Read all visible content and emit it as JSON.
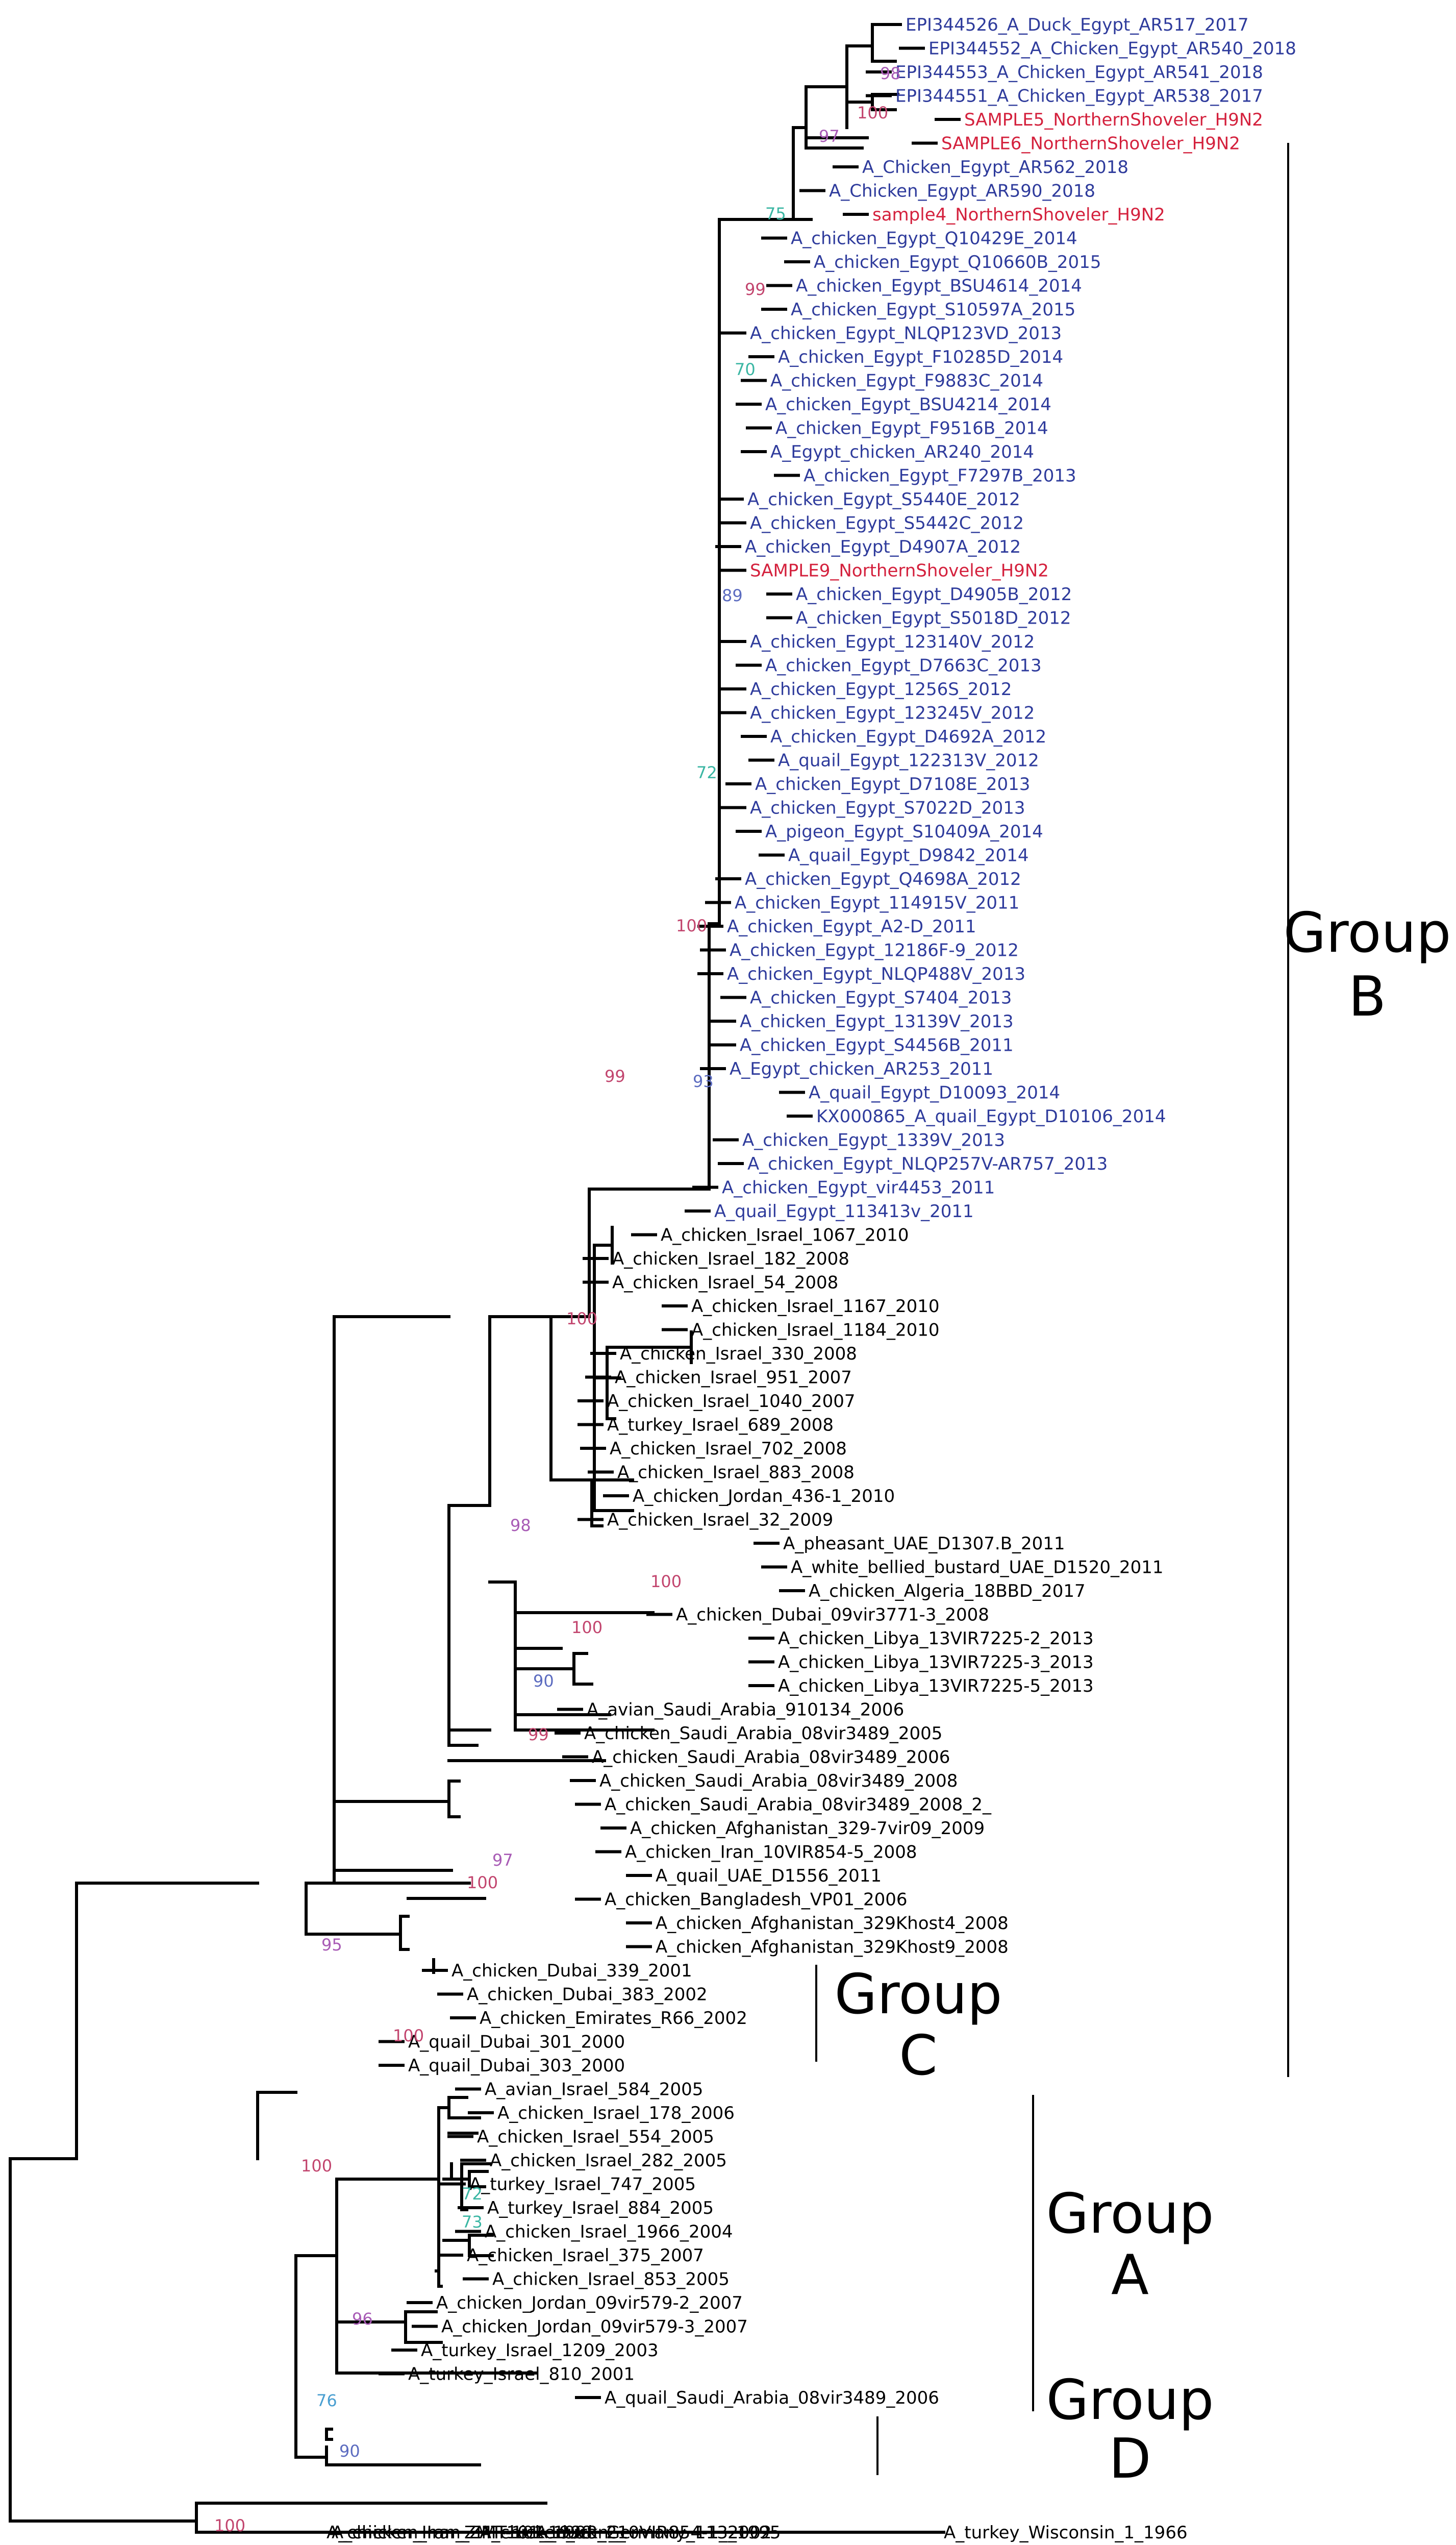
{
  "figure_type": "phylogenetic tree",
  "colors": {
    "branch": "#000000",
    "egypt_reference": "#2e3b9c",
    "study_sample": "#d4213d",
    "other_taxa": "#000000",
    "bootstrap_100_99": "#c2456e",
    "bootstrap_95_98": "#a85bb5",
    "bootstrap_89_93": "#5c6cc0",
    "bootstrap_70_75": "#3ab6a3",
    "bootstrap_76": "#4a9fd1"
  },
  "groups": [
    {
      "id": "B",
      "line1": "Group",
      "line2": "B"
    },
    {
      "id": "C",
      "line1": "Group",
      "line2": "C"
    },
    {
      "id": "A",
      "line1": "Group",
      "line2": "A"
    },
    {
      "id": "D",
      "line1": "Group",
      "line2": "D"
    }
  ],
  "taxa": [
    {
      "label": "EPI344526_A_Duck_Egypt_AR517_2017",
      "category": "egypt_reference"
    },
    {
      "label": "EPI344552_A_Chicken_Egypt_AR540_2018",
      "category": "egypt_reference"
    },
    {
      "label": "EPI344553_A_Chicken_Egypt_AR541_2018",
      "category": "egypt_reference"
    },
    {
      "label": "EPI344551_A_Chicken_Egypt_AR538_2017",
      "category": "egypt_reference"
    },
    {
      "label": "SAMPLE5_NorthernShoveler_H9N2",
      "category": "study_sample"
    },
    {
      "label": "SAMPLE6_NorthernShoveler_H9N2",
      "category": "study_sample"
    },
    {
      "label": "A_Chicken_Egypt_AR562_2018",
      "category": "egypt_reference"
    },
    {
      "label": "A_Chicken_Egypt_AR590_2018",
      "category": "egypt_reference"
    },
    {
      "label": "sample4_NorthernShoveler_H9N2",
      "category": "study_sample"
    },
    {
      "label": "A_chicken_Egypt_Q10429E_2014",
      "category": "egypt_reference"
    },
    {
      "label": "A_chicken_Egypt_Q10660B_2015",
      "category": "egypt_reference"
    },
    {
      "label": "A_chicken_Egypt_BSU4614_2014",
      "category": "egypt_reference"
    },
    {
      "label": "A_chicken_Egypt_S10597A_2015",
      "category": "egypt_reference"
    },
    {
      "label": "A_chicken_Egypt_NLQP123VD_2013",
      "category": "egypt_reference"
    },
    {
      "label": "A_chicken_Egypt_F10285D_2014",
      "category": "egypt_reference"
    },
    {
      "label": "A_chicken_Egypt_F9883C_2014",
      "category": "egypt_reference"
    },
    {
      "label": "A_chicken_Egypt_BSU4214_2014",
      "category": "egypt_reference"
    },
    {
      "label": "A_chicken_Egypt_F9516B_2014",
      "category": "egypt_reference"
    },
    {
      "label": "A_Egypt_chicken_AR240_2014",
      "category": "egypt_reference"
    },
    {
      "label": "A_chicken_Egypt_F7297B_2013",
      "category": "egypt_reference"
    },
    {
      "label": "A_chicken_Egypt_S5440E_2012",
      "category": "egypt_reference"
    },
    {
      "label": "A_chicken_Egypt_S5442C_2012",
      "category": "egypt_reference"
    },
    {
      "label": "A_chicken_Egypt_D4907A_2012",
      "category": "egypt_reference"
    },
    {
      "label": "SAMPLE9_NorthernShoveler_H9N2",
      "category": "study_sample"
    },
    {
      "label": "A_chicken_Egypt_D4905B_2012",
      "category": "egypt_reference"
    },
    {
      "label": "A_chicken_Egypt_S5018D_2012",
      "category": "egypt_reference"
    },
    {
      "label": "A_chicken_Egypt_123140V_2012",
      "category": "egypt_reference"
    },
    {
      "label": "A_chicken_Egypt_D7663C_2013",
      "category": "egypt_reference"
    },
    {
      "label": "A_chicken_Egypt_1256S_2012",
      "category": "egypt_reference"
    },
    {
      "label": "A_chicken_Egypt_123245V_2012",
      "category": "egypt_reference"
    },
    {
      "label": "A_chicken_Egypt_D4692A_2012",
      "category": "egypt_reference"
    },
    {
      "label": "A_quail_Egypt_122313V_2012",
      "category": "egypt_reference"
    },
    {
      "label": "A_chicken_Egypt_D7108E_2013",
      "category": "egypt_reference"
    },
    {
      "label": "A_chicken_Egypt_S7022D_2013",
      "category": "egypt_reference"
    },
    {
      "label": "A_pigeon_Egypt_S10409A_2014",
      "category": "egypt_reference"
    },
    {
      "label": "A_quail_Egypt_D9842_2014",
      "category": "egypt_reference"
    },
    {
      "label": "A_chicken_Egypt_Q4698A_2012",
      "category": "egypt_reference"
    },
    {
      "label": "A_chicken_Egypt_114915V_2011",
      "category": "egypt_reference"
    },
    {
      "label": "A_chicken_Egypt_A2-D_2011",
      "category": "egypt_reference"
    },
    {
      "label": "A_chicken_Egypt_12186F-9_2012",
      "category": "egypt_reference"
    },
    {
      "label": "A_chicken_Egypt_NLQP488V_2013",
      "category": "egypt_reference"
    },
    {
      "label": "A_chicken_Egypt_S7404_2013",
      "category": "egypt_reference"
    },
    {
      "label": "A_chicken_Egypt_13139V_2013",
      "category": "egypt_reference"
    },
    {
      "label": "A_chicken_Egypt_S4456B_2011",
      "category": "egypt_reference"
    },
    {
      "label": "A_Egypt_chicken_AR253_2011",
      "category": "egypt_reference"
    },
    {
      "label": "A_quail_Egypt_D10093_2014",
      "category": "egypt_reference"
    },
    {
      "label": "KX000865_A_quail_Egypt_D10106_2014",
      "category": "egypt_reference"
    },
    {
      "label": "A_chicken_Egypt_1339V_2013",
      "category": "egypt_reference"
    },
    {
      "label": "A_chicken_Egypt_NLQP257V-AR757_2013",
      "category": "egypt_reference"
    },
    {
      "label": "A_chicken_Egypt_vir4453_2011",
      "category": "egypt_reference"
    },
    {
      "label": "A_quail_Egypt_113413v_2011",
      "category": "egypt_reference"
    },
    {
      "label": "A_chicken_Israel_1067_2010",
      "category": "other"
    },
    {
      "label": "A_chicken_Israel_182_2008",
      "category": "other"
    },
    {
      "label": "A_chicken_Israel_54_2008",
      "category": "other"
    },
    {
      "label": "A_chicken_Israel_1167_2010",
      "category": "other"
    },
    {
      "label": "A_chicken_Israel_1184_2010",
      "category": "other"
    },
    {
      "label": "A_chicken_Israel_330_2008",
      "category": "other"
    },
    {
      "label": "A_chicken_Israel_951_2007",
      "category": "other"
    },
    {
      "label": "A_chicken_Israel_1040_2007",
      "category": "other"
    },
    {
      "label": "A_turkey_Israel_689_2008",
      "category": "other"
    },
    {
      "label": "A_chicken_Israel_702_2008",
      "category": "other"
    },
    {
      "label": "A_chicken_Israel_883_2008",
      "category": "other"
    },
    {
      "label": "A_chicken_Jordan_436-1_2010",
      "category": "other"
    },
    {
      "label": "A_chicken_Israel_32_2009",
      "category": "other"
    },
    {
      "label": "A_pheasant_UAE_D1307.B_2011",
      "category": "other"
    },
    {
      "label": "A_white_bellied_bustard_UAE_D1520_2011",
      "category": "other"
    },
    {
      "label": "A_chicken_Algeria_18BBD_2017",
      "category": "other"
    },
    {
      "label": "A_chicken_Dubai_09vir3771-3_2008",
      "category": "other"
    },
    {
      "label": "A_chicken_Libya_13VIR7225-2_2013",
      "category": "other"
    },
    {
      "label": "A_chicken_Libya_13VIR7225-3_2013",
      "category": "other"
    },
    {
      "label": "A_chicken_Libya_13VIR7225-5_2013",
      "category": "other"
    },
    {
      "label": "A_avian_Saudi_Arabia_910134_2006",
      "category": "other"
    },
    {
      "label": "A_chicken_Saudi_Arabia_08vir3489_2005",
      "category": "other"
    },
    {
      "label": "A_chicken_Saudi_Arabia_08vir3489_2006",
      "category": "other"
    },
    {
      "label": "A_chicken_Saudi_Arabia_08vir3489_2008",
      "category": "other"
    },
    {
      "label": "A_chicken_Saudi_Arabia_08vir3489_2008_2_",
      "category": "other"
    },
    {
      "label": "A_chicken_Afghanistan_329-7vir09_2009",
      "category": "other"
    },
    {
      "label": "A_chicken_Iran_10VIR854-5_2008",
      "category": "other"
    },
    {
      "label": "A_quail_UAE_D1556_2011",
      "category": "other"
    },
    {
      "label": "A_chicken_Bangladesh_VP01_2006",
      "category": "other"
    },
    {
      "label": "A_chicken_Afghanistan_329Khost4_2008",
      "category": "other"
    },
    {
      "label": "A_chicken_Afghanistan_329Khost9_2008",
      "category": "other"
    },
    {
      "label": "A_chicken_Dubai_339_2001",
      "category": "other"
    },
    {
      "label": "A_chicken_Dubai_383_2002",
      "category": "other"
    },
    {
      "label": "A_chicken_Emirates_R66_2002",
      "category": "other"
    },
    {
      "label": "A_quail_Dubai_301_2000",
      "category": "other"
    },
    {
      "label": "A_quail_Dubai_303_2000",
      "category": "other"
    },
    {
      "label": "A_avian_Israel_584_2005",
      "category": "other"
    },
    {
      "label": "A_chicken_Israel_178_2006",
      "category": "other"
    },
    {
      "label": "A_chicken_Israel_554_2005",
      "category": "other"
    },
    {
      "label": "A_chicken_Israel_282_2005",
      "category": "other"
    },
    {
      "label": "A_turkey_Israel_747_2005",
      "category": "other"
    },
    {
      "label": "A_turkey_Israel_884_2005",
      "category": "other"
    },
    {
      "label": "A_chicken_Israel_1966_2004",
      "category": "other"
    },
    {
      "label": "A_chicken_Israel_375_2007",
      "category": "other"
    },
    {
      "label": "A_chicken_Israel_853_2005",
      "category": "other"
    },
    {
      "label": "A_chicken_Jordan_09vir579-2_2007",
      "category": "other"
    },
    {
      "label": "A_chicken_Jordan_09vir579-3_2007",
      "category": "other"
    },
    {
      "label": "A_turkey_Israel_1209_2003",
      "category": "other"
    },
    {
      "label": "A_turkey_Israel_810_2001",
      "category": "other"
    },
    {
      "label": "A_quail_Saudi_Arabia_08vir3489_2006",
      "category": "other"
    },
    {
      "label": "A_chicken_Iran_ZMT-101_1998",
      "category": "other"
    },
    {
      "label": "A_chicken_Iran_ZMT-101_1998_2_",
      "category": "other"
    },
    {
      "label": "A_chicken_Iran_10VIR854-1_2002",
      "category": "other"
    },
    {
      "label": "A_duck_Germany_113_1995",
      "category": "other"
    },
    {
      "label": "A_turkey_Wisconsin_1_1966",
      "category": "other"
    }
  ],
  "bootstrap": [
    {
      "value": "98"
    },
    {
      "value": "100"
    },
    {
      "value": "97"
    },
    {
      "value": "75"
    },
    {
      "value": "99"
    },
    {
      "value": "70"
    },
    {
      "value": "89"
    },
    {
      "value": "72"
    },
    {
      "value": "100"
    },
    {
      "value": "93"
    },
    {
      "value": "99"
    },
    {
      "value": "100"
    },
    {
      "value": "98"
    },
    {
      "value": "100"
    },
    {
      "value": "100"
    },
    {
      "value": "90"
    },
    {
      "value": "99"
    },
    {
      "value": "97"
    },
    {
      "value": "100"
    },
    {
      "value": "95"
    },
    {
      "value": "100"
    },
    {
      "value": "100"
    },
    {
      "value": "72"
    },
    {
      "value": "73"
    },
    {
      "value": "96"
    },
    {
      "value": "76"
    },
    {
      "value": "90"
    },
    {
      "value": "100"
    }
  ]
}
